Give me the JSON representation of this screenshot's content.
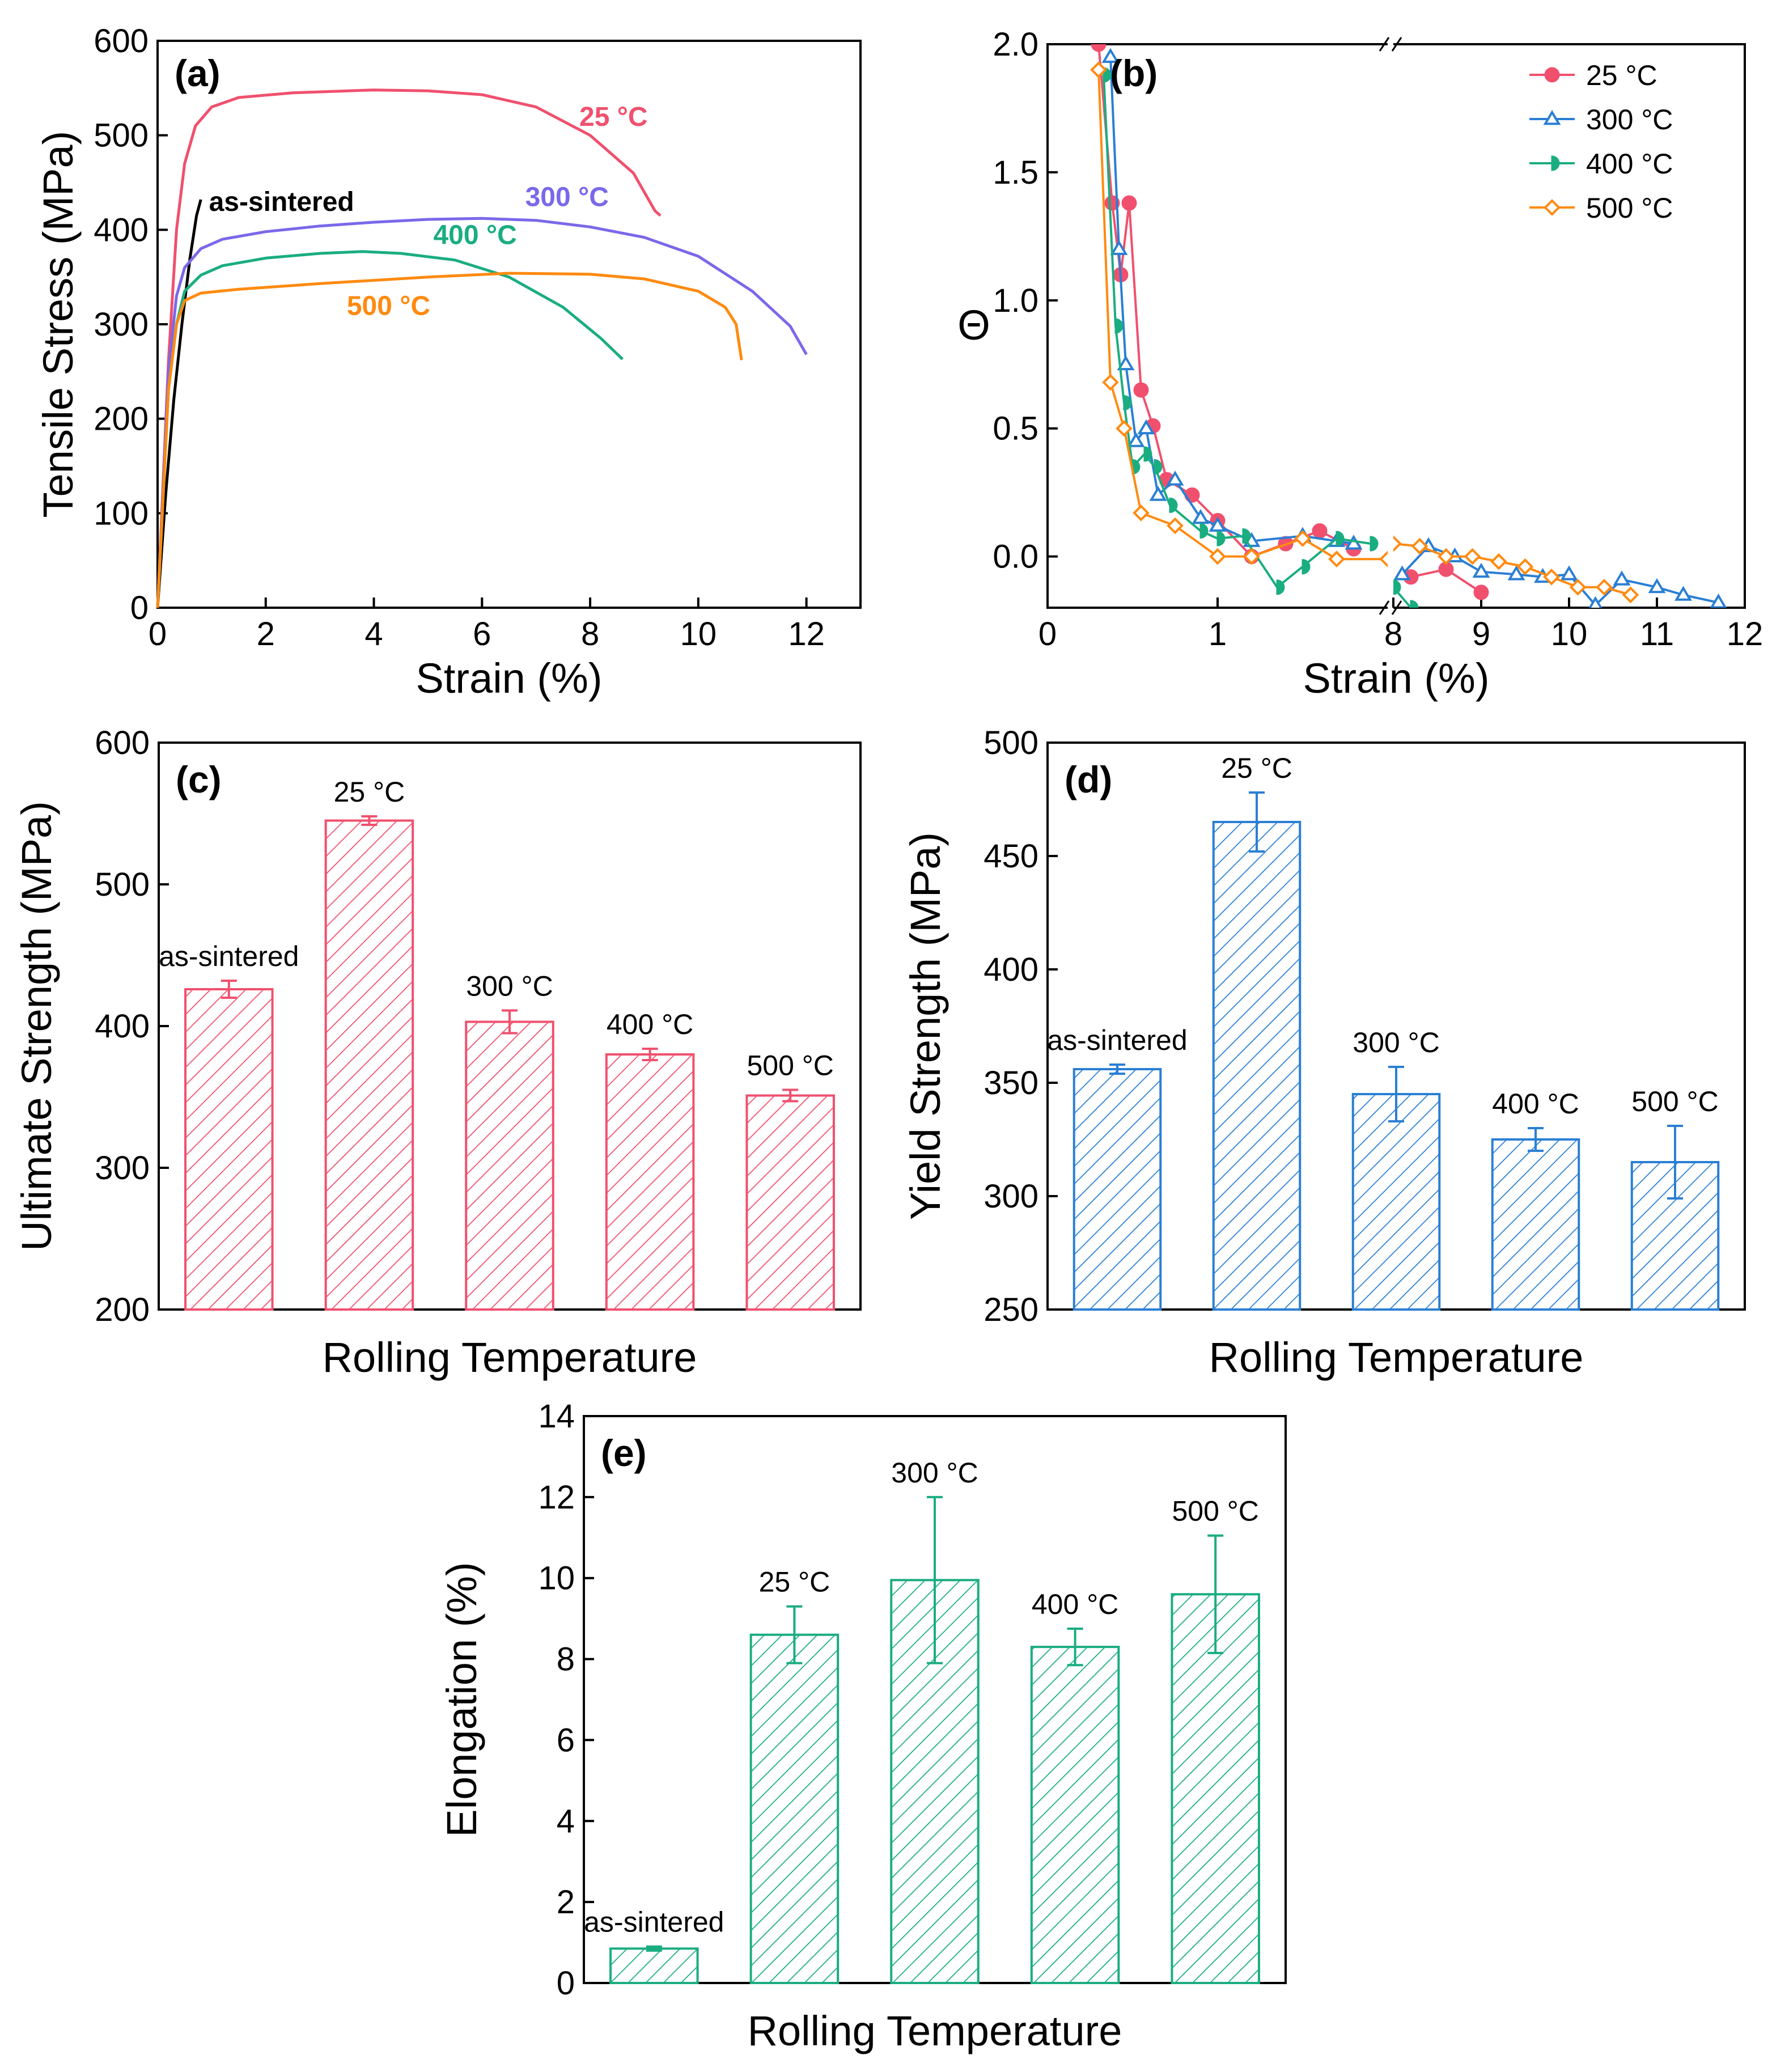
{
  "colors": {
    "c25": "#f0506e",
    "c300": "#7a68ea",
    "c400": "#1aad80",
    "c500": "#ff8a10",
    "sintered": "#000000",
    "bar_c": "#f0506e",
    "bar_d": "#2a7fd4",
    "bar_e": "#1aad80",
    "b300": "#2a7fd4",
    "b500": "#ff8a10"
  },
  "chart_data": [
    {
      "id": "a",
      "type": "line",
      "panel_label": "(a)",
      "xlabel": "Strain (%)",
      "ylabel": "Tensile Stress (MPa)",
      "xlim": [
        0,
        13
      ],
      "ylim": [
        0,
        600
      ],
      "xticks": [
        "0",
        "2",
        "4",
        "6",
        "8",
        "10",
        "12"
      ],
      "yticks": [
        "0",
        "100",
        "200",
        "300",
        "400",
        "500",
        "600"
      ],
      "series": [
        {
          "name": "as-sintered",
          "color": "sintered",
          "label": "as-sintered",
          "points": [
            [
              0,
              0
            ],
            [
              0.15,
              120
            ],
            [
              0.3,
              220
            ],
            [
              0.45,
              300
            ],
            [
              0.6,
              370
            ],
            [
              0.72,
              415
            ],
            [
              0.8,
              432
            ]
          ]
        },
        {
          "name": "25 °C",
          "color": "c25",
          "label": "25 °C",
          "points": [
            [
              0,
              0
            ],
            [
              0.2,
              260
            ],
            [
              0.35,
              400
            ],
            [
              0.5,
              470
            ],
            [
              0.7,
              510
            ],
            [
              1,
              530
            ],
            [
              1.5,
              540
            ],
            [
              2.5,
              545
            ],
            [
              4,
              548
            ],
            [
              5,
              547
            ],
            [
              6,
              543
            ],
            [
              7,
              530
            ],
            [
              8,
              500
            ],
            [
              8.8,
              460
            ],
            [
              9.2,
              420
            ],
            [
              9.3,
              415
            ]
          ]
        },
        {
          "name": "300 °C",
          "color": "c300",
          "label": "300 °C",
          "points": [
            [
              0,
              0
            ],
            [
              0.2,
              250
            ],
            [
              0.35,
              330
            ],
            [
              0.5,
              360
            ],
            [
              0.8,
              380
            ],
            [
              1.2,
              390
            ],
            [
              2,
              398
            ],
            [
              3,
              404
            ],
            [
              4,
              408
            ],
            [
              5,
              411
            ],
            [
              6,
              412
            ],
            [
              7,
              410
            ],
            [
              8,
              403
            ],
            [
              9,
              392
            ],
            [
              10,
              372
            ],
            [
              11,
              335
            ],
            [
              11.7,
              298
            ],
            [
              12,
              268
            ]
          ]
        },
        {
          "name": "400 °C",
          "color": "c400",
          "label": "400 °C",
          "points": [
            [
              0,
              0
            ],
            [
              0.2,
              230
            ],
            [
              0.35,
              300
            ],
            [
              0.5,
              335
            ],
            [
              0.8,
              352
            ],
            [
              1.2,
              362
            ],
            [
              2,
              370
            ],
            [
              3,
              375
            ],
            [
              3.8,
              377
            ],
            [
              4.5,
              375
            ],
            [
              5.5,
              368
            ],
            [
              6.5,
              350
            ],
            [
              7.5,
              318
            ],
            [
              8.2,
              285
            ],
            [
              8.6,
              263
            ]
          ]
        },
        {
          "name": "500 °C",
          "color": "c500",
          "label": "500 °C",
          "points": [
            [
              0,
              0
            ],
            [
              0.2,
              230
            ],
            [
              0.35,
              300
            ],
            [
              0.5,
              325
            ],
            [
              0.8,
              333
            ],
            [
              1.5,
              337
            ],
            [
              3,
              343
            ],
            [
              5,
              350
            ],
            [
              6.5,
              354
            ],
            [
              8,
              353
            ],
            [
              9,
              348
            ],
            [
              10,
              335
            ],
            [
              10.5,
              318
            ],
            [
              10.7,
              300
            ],
            [
              10.8,
              262
            ]
          ]
        }
      ]
    },
    {
      "id": "b",
      "type": "line",
      "panel_label": "(b)",
      "xlabel": "Strain (%)",
      "ylabel": "Θ",
      "ylim": [
        -0.2,
        2.0
      ],
      "x_break": {
        "left_range": [
          0,
          2
        ],
        "right_range": [
          8,
          12
        ]
      },
      "xticks_left": [
        "0",
        "1"
      ],
      "xticks_right": [
        "8",
        "9",
        "10",
        "11",
        "12"
      ],
      "yticks": [
        "0.0",
        "0.5",
        "1.0",
        "1.5",
        "2.0"
      ],
      "legend": [
        "25 °C",
        "300 °C",
        "400 °C",
        "500 °C"
      ],
      "series": [
        {
          "name": "25 °C",
          "color": "c25",
          "marker": "circle",
          "points": [
            [
              0.3,
              2.0
            ],
            [
              0.38,
              1.38
            ],
            [
              0.43,
              1.1
            ],
            [
              0.48,
              1.38
            ],
            [
              0.55,
              0.65
            ],
            [
              0.62,
              0.51
            ],
            [
              0.7,
              0.3
            ],
            [
              0.85,
              0.24
            ],
            [
              1.0,
              0.14
            ],
            [
              1.2,
              0.0
            ],
            [
              1.4,
              0.05
            ],
            [
              1.6,
              0.1
            ],
            [
              1.8,
              0.03
            ]
          ],
          "points_right": [
            [
              8.2,
              -0.08
            ],
            [
              8.6,
              -0.05
            ],
            [
              9.0,
              -0.14
            ]
          ]
        },
        {
          "name": "300 °C",
          "color": "b300",
          "marker": "triangle",
          "points": [
            [
              0.37,
              1.95
            ],
            [
              0.42,
              1.2
            ],
            [
              0.46,
              0.75
            ],
            [
              0.52,
              0.45
            ],
            [
              0.58,
              0.5
            ],
            [
              0.65,
              0.24
            ],
            [
              0.75,
              0.3
            ],
            [
              0.9,
              0.15
            ],
            [
              1.0,
              0.12
            ],
            [
              1.2,
              0.06
            ],
            [
              1.5,
              0.08
            ],
            [
              1.7,
              0.06
            ],
            [
              1.8,
              0.05
            ]
          ],
          "points_right": [
            [
              8.1,
              -0.07
            ],
            [
              8.4,
              0.04
            ],
            [
              8.7,
              0.0
            ],
            [
              9.0,
              -0.06
            ],
            [
              9.4,
              -0.07
            ],
            [
              9.7,
              -0.08
            ],
            [
              10.0,
              -0.07
            ],
            [
              10.3,
              -0.19
            ],
            [
              10.6,
              -0.09
            ],
            [
              11.0,
              -0.12
            ],
            [
              11.3,
              -0.15
            ],
            [
              11.7,
              -0.18
            ]
          ]
        },
        {
          "name": "400 °C",
          "color": "c400",
          "marker": "half",
          "points": [
            [
              0.33,
              1.88
            ],
            [
              0.4,
              0.9
            ],
            [
              0.45,
              0.6
            ],
            [
              0.5,
              0.35
            ],
            [
              0.57,
              0.4
            ],
            [
              0.63,
              0.35
            ],
            [
              0.72,
              0.2
            ],
            [
              0.9,
              0.1
            ],
            [
              1.0,
              0.07
            ],
            [
              1.15,
              0.08
            ],
            [
              1.35,
              -0.12
            ],
            [
              1.5,
              -0.04
            ],
            [
              1.7,
              0.07
            ],
            [
              1.9,
              0.05
            ]
          ],
          "points_right": [
            [
              8.0,
              -0.12
            ],
            [
              8.2,
              -0.2
            ]
          ]
        },
        {
          "name": "500 °C",
          "color": "c500",
          "marker": "diamond",
          "points": [
            [
              0.3,
              1.9
            ],
            [
              0.37,
              0.68
            ],
            [
              0.45,
              0.5
            ],
            [
              0.55,
              0.17
            ],
            [
              0.75,
              0.12
            ],
            [
              1.0,
              0.0
            ],
            [
              1.2,
              0.0
            ],
            [
              1.5,
              0.07
            ],
            [
              1.7,
              -0.01
            ],
            [
              2.0,
              -0.01
            ]
          ],
          "points_right": [
            [
              8.0,
              0.05
            ],
            [
              8.3,
              0.04
            ],
            [
              8.6,
              0.0
            ],
            [
              8.9,
              0.0
            ],
            [
              9.2,
              -0.02
            ],
            [
              9.5,
              -0.04
            ],
            [
              9.8,
              -0.08
            ],
            [
              10.1,
              -0.12
            ],
            [
              10.4,
              -0.12
            ],
            [
              10.7,
              -0.15
            ]
          ]
        }
      ]
    },
    {
      "id": "c",
      "type": "bar",
      "panel_label": "(c)",
      "xlabel": "Rolling Temperature",
      "ylabel": "Ultimate Strength (MPa)",
      "ylim": [
        200,
        600
      ],
      "yticks": [
        "200",
        "300",
        "400",
        "500",
        "600"
      ],
      "categories": [
        "as-sintered",
        "25 °C",
        "300 °C",
        "400 °C",
        "500 °C"
      ],
      "values": [
        426,
        545,
        403,
        380,
        351
      ],
      "errors": [
        6,
        3,
        8,
        4,
        4
      ],
      "color": "bar_c"
    },
    {
      "id": "d",
      "type": "bar",
      "panel_label": "(d)",
      "xlabel": "Rolling Temperature",
      "ylabel": "Yield Strength (MPa)",
      "ylim": [
        250,
        500
      ],
      "yticks": [
        "250",
        "300",
        "350",
        "400",
        "450",
        "500"
      ],
      "categories": [
        "as-sintered",
        "25 °C",
        "300 °C",
        "400 °C",
        "500 °C"
      ],
      "values": [
        356,
        465,
        345,
        325,
        315
      ],
      "errors": [
        2,
        13,
        12,
        5,
        16
      ],
      "color": "bar_d"
    },
    {
      "id": "e",
      "type": "bar",
      "panel_label": "(e)",
      "xlabel": "Rolling Temperature",
      "ylabel": "Elongation (%)",
      "ylim": [
        0,
        14
      ],
      "yticks": [
        "0",
        "2",
        "4",
        "6",
        "8",
        "10",
        "12",
        "14"
      ],
      "categories": [
        "as-sintered",
        "25 °C",
        "300 °C",
        "400 °C",
        "500 °C"
      ],
      "values": [
        0.85,
        8.6,
        9.95,
        8.3,
        9.6
      ],
      "errors": [
        0.05,
        0.7,
        2.05,
        0.45,
        1.45
      ],
      "color": "bar_e"
    }
  ]
}
